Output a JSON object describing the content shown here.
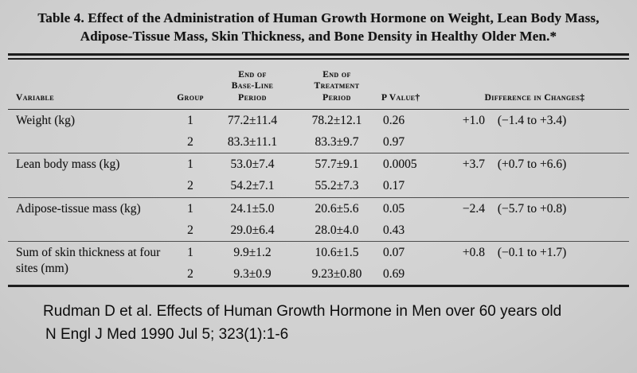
{
  "title": "Table 4. Effect of the Administration of Human Growth Hormone on Weight, Lean Body Mass, Adipose-Tissue Mass, Skin Thickness, and Bone Density in Healthy Older Men.*",
  "table": {
    "headers": {
      "variable": "Variable",
      "group": "Group",
      "baseline": [
        "End of",
        "Base-Line",
        "Period"
      ],
      "treatment": [
        "End of",
        "Treatment",
        "Period"
      ],
      "pvalue": "P Value†",
      "difference": "Difference in Changes‡"
    },
    "rows": [
      {
        "variable": "Weight (kg)",
        "groups": [
          {
            "group": "1",
            "baseline": "77.2±11.4",
            "treatment": "78.2±12.1",
            "pvalue": "0.26",
            "diff": "+1.0",
            "ci": "(−1.4 to +3.4)"
          },
          {
            "group": "2",
            "baseline": "83.3±11.1",
            "treatment": "83.3±9.7",
            "pvalue": "0.97",
            "diff": "",
            "ci": ""
          }
        ]
      },
      {
        "variable": "Lean body mass (kg)",
        "groups": [
          {
            "group": "1",
            "baseline": "53.0±7.4",
            "treatment": "57.7±9.1",
            "pvalue": "0.0005",
            "diff": "+3.7",
            "ci": "(+0.7 to +6.6)"
          },
          {
            "group": "2",
            "baseline": "54.2±7.1",
            "treatment": "55.2±7.3",
            "pvalue": "0.17",
            "diff": "",
            "ci": ""
          }
        ]
      },
      {
        "variable": "Adipose-tissue mass (kg)",
        "groups": [
          {
            "group": "1",
            "baseline": "24.1±5.0",
            "treatment": "20.6±5.6",
            "pvalue": "0.05",
            "diff": "−2.4",
            "ci": "(−5.7 to +0.8)"
          },
          {
            "group": "2",
            "baseline": "29.0±6.4",
            "treatment": "28.0±4.0",
            "pvalue": "0.43",
            "diff": "",
            "ci": ""
          }
        ]
      },
      {
        "variable": "Sum of skin thickness at four sites (mm)",
        "groups": [
          {
            "group": "1",
            "baseline": "9.9±1.2",
            "treatment": "10.6±1.5",
            "pvalue": "0.07",
            "diff": "+0.8",
            "ci": "(−0.1 to +1.7)"
          },
          {
            "group": "2",
            "baseline": "9.3±0.9",
            "treatment": "9.23±0.80",
            "pvalue": "0.69",
            "diff": "",
            "ci": ""
          }
        ]
      }
    ]
  },
  "citation": {
    "line1": "Rudman D et al. Effects of Human Growth Hormone in Men over 60 years old",
    "line2": "N Engl J Med 1990 Jul 5; 323(1):1-6"
  }
}
